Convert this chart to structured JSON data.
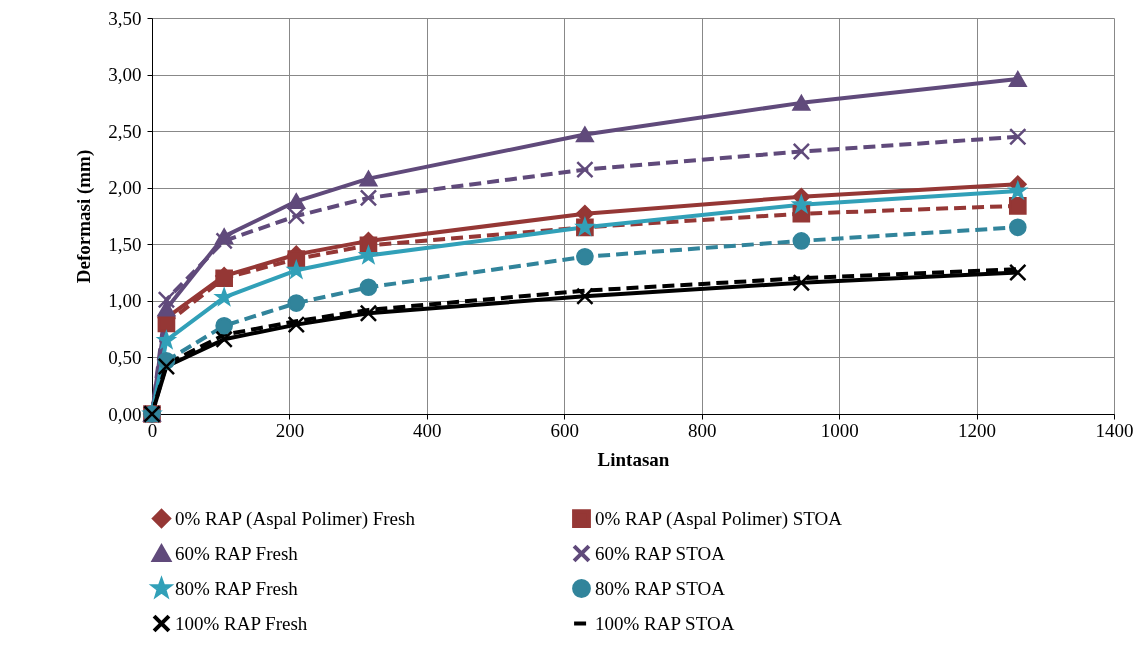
{
  "chart_data": {
    "type": "line",
    "xlabel": "Lintasan",
    "ylabel": "Deformasi (mm)",
    "x": [
      0,
      21,
      105,
      210,
      315,
      630,
      945,
      1260
    ],
    "xlim": [
      0,
      1400
    ],
    "xticks": [
      0,
      200,
      400,
      600,
      800,
      1000,
      1200,
      1400
    ],
    "ylim": [
      0,
      3.5
    ],
    "yticks": [
      {
        "value": 0,
        "label": "0,00"
      },
      {
        "value": 0.5,
        "label": "0,50"
      },
      {
        "value": 1,
        "label": "1,00"
      },
      {
        "value": 1.5,
        "label": "1,50"
      },
      {
        "value": 2,
        "label": "2,00"
      },
      {
        "value": 2.5,
        "label": "2,50"
      },
      {
        "value": 3,
        "label": "3,00"
      },
      {
        "value": 3.5,
        "label": "3,50"
      }
    ],
    "grid": true,
    "legend": "bottom",
    "series": [
      {
        "name": "0% RAP (Aspal Polimer) Fresh",
        "color": "#953735",
        "marker": "diamond",
        "line_style": "solid",
        "values": [
          0,
          0.85,
          1.22,
          1.41,
          1.53,
          1.77,
          1.92,
          2.03
        ]
      },
      {
        "name": "0% RAP (Aspal Polimer) STOA",
        "color": "#953735",
        "marker": "square",
        "line_style": "dashed",
        "values": [
          0,
          0.8,
          1.2,
          1.37,
          1.49,
          1.65,
          1.77,
          1.84
        ]
      },
      {
        "name": "60% RAP Fresh",
        "color": "#604a7b",
        "marker": "triangle",
        "line_style": "solid",
        "values": [
          0,
          0.93,
          1.57,
          1.88,
          2.08,
          2.47,
          2.75,
          2.96
        ]
      },
      {
        "name": "60% RAP STOA",
        "color": "#604a7b",
        "marker": "cross",
        "line_style": "dashed",
        "values": [
          0,
          1.01,
          1.53,
          1.75,
          1.91,
          2.16,
          2.32,
          2.45
        ]
      },
      {
        "name": "80% RAP Fresh",
        "color": "#31a0b8",
        "marker": "star",
        "line_style": "solid",
        "values": [
          0,
          0.65,
          1.03,
          1.27,
          1.4,
          1.65,
          1.85,
          1.97
        ]
      },
      {
        "name": "80% RAP STOA",
        "color": "#31849b",
        "marker": "circle",
        "line_style": "dashed",
        "values": [
          0,
          0.47,
          0.78,
          0.98,
          1.12,
          1.39,
          1.53,
          1.65
        ]
      },
      {
        "name": "100% RAP Fresh",
        "color": "#000000",
        "marker": "cross",
        "line_style": "solid",
        "values": [
          0,
          0.42,
          0.66,
          0.79,
          0.89,
          1.04,
          1.16,
          1.25
        ]
      },
      {
        "name": "100% RAP STOA",
        "color": "#000000",
        "marker": "none",
        "line_style": "dashed",
        "values": [
          0,
          0.44,
          0.7,
          0.82,
          0.92,
          1.09,
          1.2,
          1.28
        ]
      }
    ]
  }
}
